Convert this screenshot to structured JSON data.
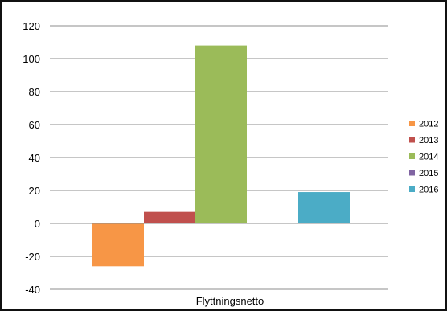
{
  "chart_data": {
    "type": "bar",
    "categories": [
      "Flyttningsnetto"
    ],
    "series": [
      {
        "name": "2012",
        "values": [
          -26
        ],
        "color": "#F79646"
      },
      {
        "name": "2013",
        "values": [
          7
        ],
        "color": "#C0504D"
      },
      {
        "name": "2014",
        "values": [
          108
        ],
        "color": "#9BBB59"
      },
      {
        "name": "2015",
        "values": [
          0
        ],
        "color": "#8064A2"
      },
      {
        "name": "2016",
        "values": [
          19
        ],
        "color": "#4BACC6"
      }
    ],
    "y_ticks": [
      "-40",
      "-20",
      "0",
      "20",
      "40",
      "60",
      "80",
      "100",
      "120"
    ],
    "ylim": [
      -40,
      120
    ],
    "grid": true,
    "legend_position": "right"
  }
}
